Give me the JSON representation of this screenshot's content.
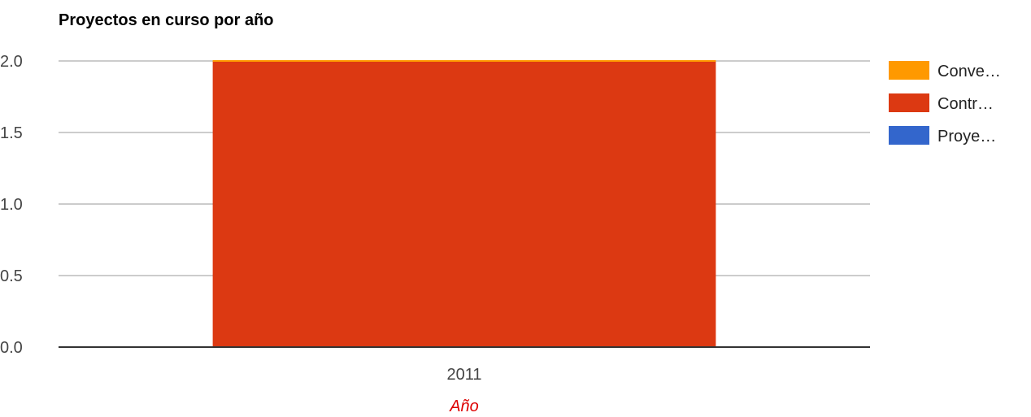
{
  "chart_data": {
    "type": "bar",
    "stacked": true,
    "title": "Proyectos en curso por año",
    "xlabel": "Año",
    "ylabel": "",
    "ylim": [
      0,
      2
    ],
    "yticks": [
      "0.0",
      "0.5",
      "1.0",
      "1.5",
      "2.0"
    ],
    "categories": [
      "2011"
    ],
    "series": [
      {
        "name": "Conve…",
        "values": [
          0
        ],
        "color": "#ff9900"
      },
      {
        "name": "Contr…",
        "values": [
          2
        ],
        "color": "#dc3912"
      },
      {
        "name": "Proye…",
        "values": [
          0
        ],
        "color": "#3366cc"
      }
    ],
    "legend_position": "right",
    "grid": true,
    "xlabel_color": "#dd0000"
  }
}
